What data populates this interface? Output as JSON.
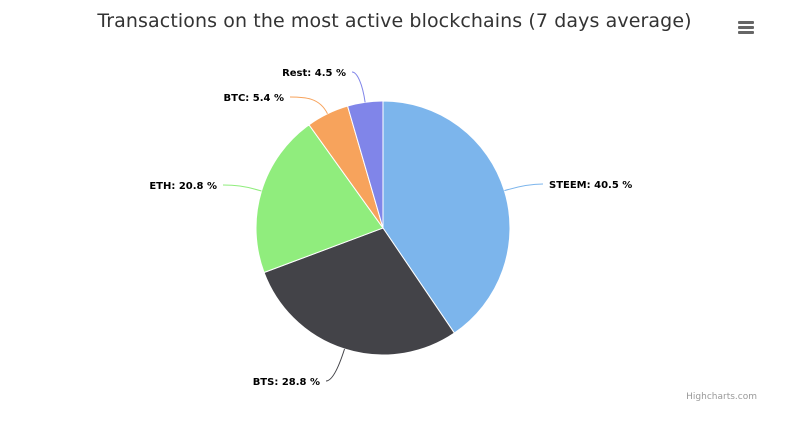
{
  "title": "Transactions on the most active blockchains (7 days average)",
  "credits": "Highcharts.com",
  "menu_icon": "hamburger-menu-icon",
  "chart_data": {
    "type": "pie",
    "title": "Transactions on the most active blockchains (7 days average)",
    "slices": [
      {
        "name": "STEEM",
        "value": 40.5,
        "label": "STEEM: 40.5 %",
        "color": "#7cb5ec"
      },
      {
        "name": "BTS",
        "value": 28.8,
        "label": "BTS: 28.8 %",
        "color": "#434348"
      },
      {
        "name": "ETH",
        "value": 20.8,
        "label": "ETH: 20.8 %",
        "color": "#90ed7d"
      },
      {
        "name": "BTC",
        "value": 5.4,
        "label": "BTC: 5.4 %",
        "color": "#f7a35c"
      },
      {
        "name": "Rest",
        "value": 4.5,
        "label": "Rest: 4.5 %",
        "color": "#8085e9"
      }
    ]
  }
}
